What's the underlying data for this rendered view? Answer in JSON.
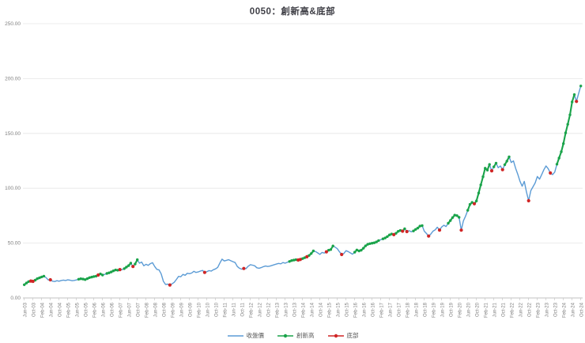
{
  "header": {
    "title": "0050：創新高&底部"
  },
  "legend": {
    "close_label": "收盤價",
    "new_high_label": "創新高",
    "bottom_label": "底部"
  },
  "colors": {
    "close": "#5b9bd5",
    "new_high": "#1aa34a",
    "bottom": "#d02525",
    "grid": "#e6e6e6",
    "axis": "#c0c0c0",
    "tick_text": "#7f7f7f",
    "title_text": "#3f3f46"
  },
  "chart_data": {
    "type": "line",
    "title": "0050：創新高&底部",
    "xlabel": "",
    "ylabel": "",
    "ylim": [
      0,
      250
    ],
    "grid": "horizontal",
    "legend_position": "bottom",
    "y_ticks": [
      {
        "value": 0,
        "label": "0.00"
      },
      {
        "value": 50,
        "label": "50.00"
      },
      {
        "value": 100,
        "label": "100.00"
      },
      {
        "value": 150,
        "label": "150.00"
      },
      {
        "value": 200,
        "label": "200.00"
      },
      {
        "value": 250,
        "label": "250.00"
      }
    ],
    "x_tick_labels": [
      "Jun-03",
      "Oct-03",
      "Feb-04",
      "Jun-04",
      "Oct-04",
      "Feb-05",
      "Jun-05",
      "Oct-05",
      "Feb-06",
      "Jun-06",
      "Oct-06",
      "Feb-07",
      "Jun-07",
      "Oct-07",
      "Feb-08",
      "Jun-08",
      "Oct-08",
      "Feb-09",
      "Jun-09",
      "Oct-09",
      "Feb-10",
      "Jun-10",
      "Oct-10",
      "Feb-11",
      "Jun-11",
      "Oct-11",
      "Feb-12",
      "Jun-12",
      "Oct-12",
      "Feb-13",
      "Jun-13",
      "Oct-13",
      "Feb-14",
      "Jun-14",
      "Oct-14",
      "Feb-15",
      "Jun-15",
      "Oct-15",
      "Feb-16",
      "Jun-16",
      "Oct-16",
      "Feb-17",
      "Jun-17",
      "Oct-17",
      "Feb-18",
      "Jun-18",
      "Oct-18",
      "Feb-19",
      "Jun-19",
      "Oct-19",
      "Feb-20",
      "Jun-20",
      "Oct-20",
      "Feb-21",
      "Jun-21",
      "Oct-21",
      "Feb-22",
      "Jun-22",
      "Oct-22",
      "Feb-23",
      "Jun-23",
      "Oct-23",
      "Feb-24",
      "Jun-24",
      "Oct-24"
    ],
    "start_month": "2003-06",
    "frequency": "monthly",
    "series": [
      {
        "name": "收盤價",
        "role": "close-price-line",
        "values": [
          12.0,
          13.6,
          14.9,
          15.4,
          15.1,
          16.2,
          17.6,
          18.4,
          19.2,
          19.9,
          18.6,
          16.4,
          16.6,
          15.3,
          15.0,
          15.7,
          15.3,
          15.9,
          16.3,
          15.9,
          16.5,
          16.2,
          15.7,
          16.0,
          16.4,
          17.1,
          17.5,
          17.2,
          16.7,
          17.6,
          18.5,
          19.0,
          19.5,
          19.9,
          20.9,
          21.9,
          20.9,
          21.5,
          22.3,
          22.9,
          23.7,
          24.7,
          25.5,
          25.3,
          25.9,
          25.7,
          26.7,
          28.1,
          29.5,
          31.7,
          28.7,
          30.9,
          34.9,
          31.7,
          32.7,
          29.3,
          30.7,
          29.7,
          31.3,
          32.1,
          28.7,
          26.1,
          25.5,
          21.9,
          15.1,
          12.3,
          12.6,
          11.8,
          12.9,
          14.3,
          16.9,
          19.7,
          19.3,
          21.5,
          20.7,
          22.5,
          22.1,
          22.7,
          24.3,
          23.3,
          23.7,
          24.5,
          25.1,
          23.3,
          23.9,
          24.9,
          24.5,
          25.7,
          26.5,
          27.9,
          31.9,
          35.4,
          33.7,
          34.3,
          34.9,
          33.9,
          33.1,
          32.3,
          28.7,
          27.1,
          26.2,
          26.9,
          26.7,
          28.9,
          30.3,
          29.9,
          29.3,
          27.5,
          27.1,
          27.7,
          28.5,
          29.1,
          28.7,
          29.0,
          29.7,
          30.3,
          30.9,
          31.5,
          31.1,
          32.3,
          31.7,
          32.5,
          33.3,
          34.1,
          34.5,
          34.9,
          34.6,
          35.1,
          35.9,
          36.7,
          37.5,
          38.7,
          40.5,
          42.9,
          42.3,
          41.1,
          39.7,
          41.5,
          40.9,
          42.1,
          43.5,
          44.1,
          47.4,
          46.3,
          44.9,
          42.1,
          39.6,
          40.5,
          43.1,
          42.3,
          41.1,
          39.9,
          41.7,
          43.7,
          42.9,
          43.5,
          45.3,
          47.5,
          48.9,
          49.5,
          49.9,
          50.3,
          51.1,
          52.3,
          53.1,
          53.9,
          54.7,
          55.9,
          57.5,
          58.3,
          57.7,
          58.9,
          60.7,
          61.5,
          60.9,
          63.1,
          60.5,
          61.3,
          60.3,
          61.1,
          62.5,
          63.7,
          65.5,
          65.9,
          60.9,
          58.7,
          56.4,
          58.3,
          60.9,
          62.1,
          64.5,
          61.9,
          64.7,
          66.3,
          65.1,
          68.1,
          70.5,
          73.3,
          75.5,
          75.1,
          73.5,
          61.8,
          70.3,
          74.7,
          79.9,
          85.3,
          87.1,
          85.9,
          88.5,
          95.7,
          103.1,
          110.5,
          118.3,
          116.5,
          121.7,
          115.9,
          119.5,
          122.9,
          118.7,
          120.3,
          116.9,
          121.5,
          124.7,
          128.7,
          123.5,
          124.9,
          118.3,
          112.7,
          106.5,
          101.9,
          106.3,
          96.5,
          88.6,
          97.9,
          101.3,
          104.9,
          110.7,
          108.3,
          112.5,
          116.9,
          120.3,
          117.7,
          113.9,
          112.5,
          114.7,
          121.9,
          127.5,
          133.3,
          140.7,
          150.5,
          158.3,
          166.9,
          178.7,
          185.4,
          179.2,
          186.5,
          193.2
        ]
      },
      {
        "name": "創新高",
        "role": "new-high-marker-ranges",
        "month_index_ranges": [
          [
            0,
            3
          ],
          [
            5,
            9
          ],
          [
            25,
            36
          ],
          [
            38,
            43
          ],
          [
            46,
            49
          ],
          [
            51,
            52
          ],
          [
            122,
            133
          ],
          [
            140,
            142
          ],
          [
            152,
            163
          ],
          [
            165,
            169
          ],
          [
            171,
            175
          ],
          [
            179,
            183
          ],
          [
            195,
            200
          ],
          [
            204,
            214
          ],
          [
            216,
            217
          ],
          [
            221,
            223
          ],
          [
            245,
            253
          ],
          [
            256,
            256
          ]
        ]
      },
      {
        "name": "底部",
        "role": "bottom-markers",
        "month_indices": [
          3,
          4,
          12,
          34,
          44,
          50,
          67,
          83,
          101,
          126,
          127,
          130,
          139,
          146,
          170,
          174,
          176,
          186,
          191,
          201,
          207,
          215,
          220,
          232,
          242,
          254
        ]
      }
    ]
  }
}
